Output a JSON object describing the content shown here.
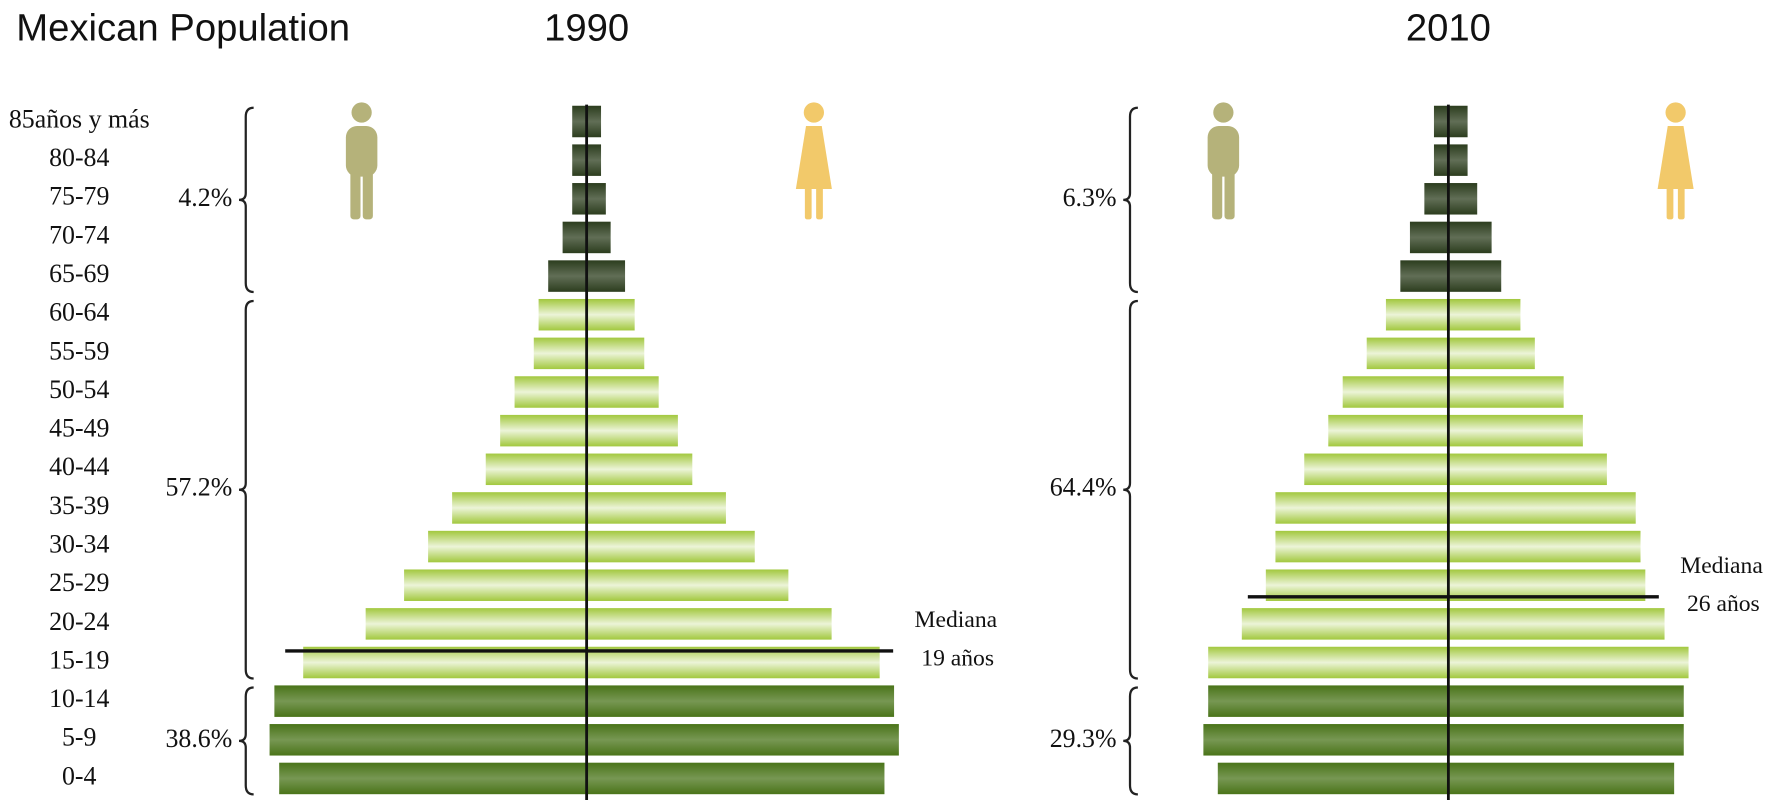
{
  "title": "Mexican Population",
  "chart_data": [
    {
      "type": "pyramid",
      "title": "1990",
      "categories": [
        "85años y más",
        "80-84",
        "75-79",
        "70-74",
        "65-69",
        "60-64",
        "55-59",
        "50-54",
        "45-49",
        "40-44",
        "35-39",
        "30-34",
        "25-29",
        "20-24",
        "15-19",
        "10-14",
        "5-9",
        "0-4"
      ],
      "series": [
        {
          "color": "#b5b27a",
          "values": [
            0.3,
            0.3,
            0.3,
            0.5,
            0.8,
            1.0,
            1.1,
            1.5,
            1.8,
            2.1,
            2.8,
            3.3,
            3.8,
            4.6,
            5.9,
            6.5,
            6.6,
            6.4
          ]
        },
        {
          "color": "#f2c96a",
          "values": [
            0.3,
            0.3,
            0.4,
            0.5,
            0.8,
            1.0,
            1.2,
            1.5,
            1.9,
            2.2,
            2.9,
            3.5,
            4.2,
            5.1,
            6.1,
            6.4,
            6.5,
            6.2
          ]
        }
      ],
      "groups": [
        {
          "value": 4.2,
          "label": "4.2%",
          "color": "#2c3d1e"
        },
        {
          "value": 57.2,
          "label": "57.2%",
          "color": "#a2c83e"
        },
        {
          "value": 38.6,
          "label": "38.6%",
          "color": "#4a7419"
        }
      ],
      "median": 19,
      "median_labels": [
        "Mediana",
        "19 años"
      ]
    },
    {
      "type": "pyramid",
      "title": "2010",
      "series": [
        {
          "color": "#b5b27a",
          "values": [
            0.3,
            0.3,
            0.5,
            0.8,
            1.0,
            1.3,
            1.7,
            2.2,
            2.5,
            3.0,
            3.6,
            3.6,
            3.8,
            4.3,
            5.0,
            5.0,
            5.1,
            4.8
          ]
        },
        {
          "color": "#f2c96a",
          "values": [
            0.4,
            0.4,
            0.6,
            0.9,
            1.1,
            1.5,
            1.8,
            2.4,
            2.8,
            3.3,
            3.9,
            4.0,
            4.1,
            4.5,
            5.0,
            4.9,
            4.9,
            4.7
          ]
        }
      ],
      "groups": [
        {
          "value": 6.3,
          "label": "6.3%",
          "color": "#2c3d1e"
        },
        {
          "value": 64.4,
          "label": "64.4%",
          "color": "#a2c83e"
        },
        {
          "value": 29.3,
          "label": "29.3%",
          "color": "#4a7419"
        }
      ],
      "median": 26,
      "median_labels": [
        "Mediana",
        "26 años"
      ]
    }
  ]
}
